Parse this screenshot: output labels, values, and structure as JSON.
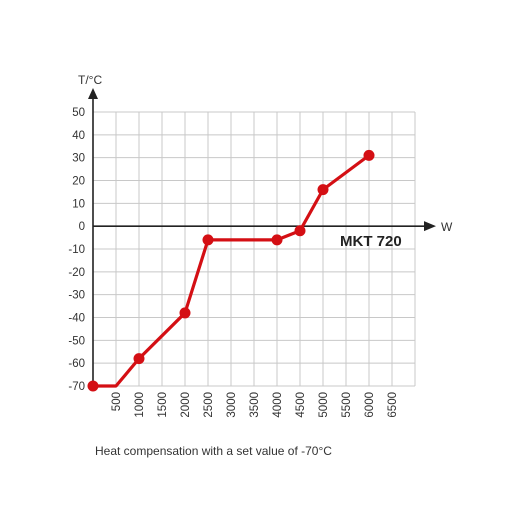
{
  "chart_data": {
    "type": "line",
    "xlabel": "W",
    "ylabel": "T/°C",
    "xlim": [
      0,
      7000
    ],
    "ylim": [
      -70,
      50
    ],
    "xticks": [
      500,
      1000,
      1500,
      2000,
      2500,
      3000,
      3500,
      4000,
      4500,
      5000,
      5500,
      6000,
      6500
    ],
    "xtick_labels": [
      "500",
      "1000",
      "1500",
      "2000",
      "2500",
      "3000",
      "3500",
      "4000",
      "4500",
      "5000",
      "5500",
      "6000",
      "6500"
    ],
    "yticks": [
      50,
      40,
      30,
      20,
      10,
      0,
      -10,
      -20,
      -30,
      -40,
      -50,
      -60,
      -70
    ],
    "ytick_labels": [
      "50",
      "40",
      "30",
      "20",
      "10",
      "0",
      "-10",
      "-20",
      "-30",
      "-40",
      "-50",
      "-60",
      "-70"
    ],
    "grid": true,
    "series": [
      {
        "name": "MKT 720",
        "color": "#d40f14",
        "points": [
          {
            "x": 0,
            "y": -70,
            "marker": true
          },
          {
            "x": 500,
            "y": -70,
            "marker": false
          },
          {
            "x": 1000,
            "y": -58,
            "marker": true
          },
          {
            "x": 2000,
            "y": -38,
            "marker": true
          },
          {
            "x": 2500,
            "y": -6,
            "marker": true
          },
          {
            "x": 4000,
            "y": -6,
            "marker": true
          },
          {
            "x": 4500,
            "y": -2,
            "marker": true
          },
          {
            "x": 5000,
            "y": 16,
            "marker": true
          },
          {
            "x": 6000,
            "y": 31,
            "marker": true
          }
        ]
      }
    ],
    "annotations": [
      {
        "text": "MKT 720"
      }
    ],
    "caption": "Heat compensation with a set value of -70°C"
  }
}
